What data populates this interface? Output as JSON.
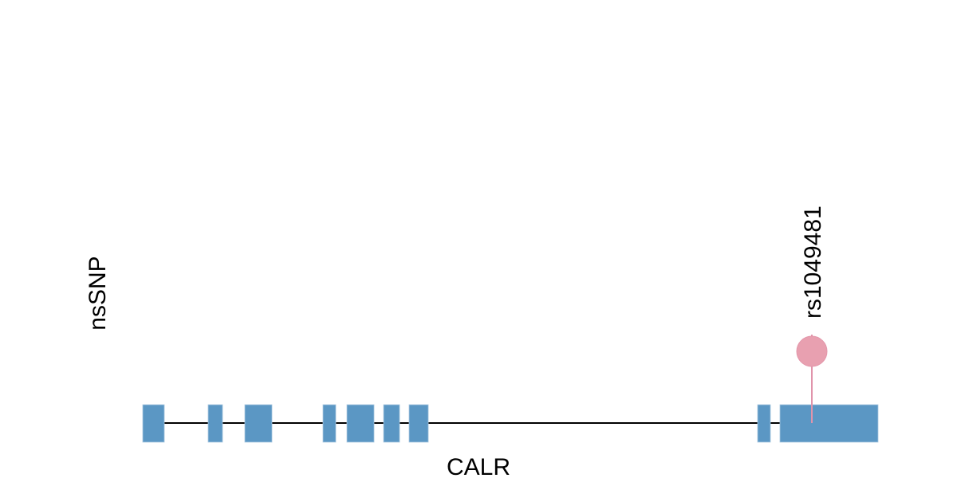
{
  "chart_data": {
    "type": "lollipop",
    "track_label": "nsSNP",
    "gene_label": "CALR",
    "xlim": [
      0,
      922
    ],
    "exons": [
      {
        "start": 0,
        "end": 27
      },
      {
        "start": 82,
        "end": 100
      },
      {
        "start": 128,
        "end": 162
      },
      {
        "start": 226,
        "end": 242
      },
      {
        "start": 256,
        "end": 290
      },
      {
        "start": 302,
        "end": 322
      },
      {
        "start": 334,
        "end": 358
      },
      {
        "start": 771,
        "end": 787
      },
      {
        "start": 799,
        "end": 922
      }
    ],
    "snps": [
      {
        "label": "rs1049481",
        "position": 839,
        "score": 1
      }
    ],
    "colors": {
      "exon": "#5b97c4",
      "snp": "#e8a0b0",
      "snp_stem": "#e094ab",
      "intron": "#000000"
    }
  }
}
